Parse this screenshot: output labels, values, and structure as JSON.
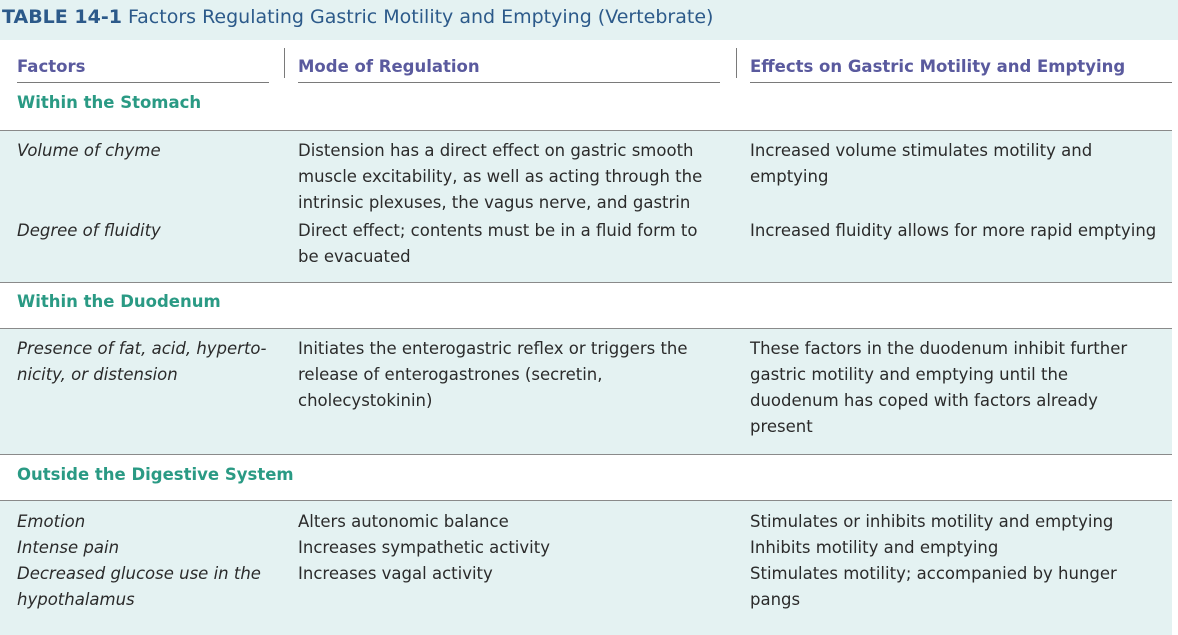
{
  "table": {
    "number": "TABLE 14-1",
    "title": "Factors Regulating Gastric Motility and Emptying (Vertebrate)",
    "columns": [
      "Factors",
      "Mode of Regulation",
      "Effects on Gastric Motility and Emptying"
    ],
    "sections": [
      {
        "label": "Within the Stomach",
        "rows": [
          {
            "factor": "Volume of chyme",
            "mode": "Distension has a direct effect on gastric smooth muscle excitability, as well as acting through the intrinsic plexuses, the vagus nerve, and gastrin",
            "effect": "Increased volume stimulates motility and emptying"
          },
          {
            "factor": "Degree of fluidity",
            "mode": "Direct effect; contents must be in a fluid form to be evacuated",
            "effect": "Increased fluidity allows for more rapid emptying"
          }
        ]
      },
      {
        "label": "Within the Duodenum",
        "rows": [
          {
            "factor": "Presence of fat, acid, hyperto- nicity, or distension",
            "mode": "Initiates the enterogastric reflex or triggers the release of enterogastrones (secretin, cholecystokinin)",
            "effect": "These factors in the duodenum inhibit further gastric motility and emptying until the duodenum has coped with factors already present"
          }
        ]
      },
      {
        "label": "Outside the Digestive System",
        "rows": [
          {
            "factor": "Emotion",
            "mode": "Alters autonomic balance",
            "effect": "Stimulates or inhibits motility and emptying"
          },
          {
            "factor": "Intense pain",
            "mode": "Increases sympathetic activity",
            "effect": "Inhibits motility and emptying"
          },
          {
            "factor": "Decreased glucose use in the hypothalamus",
            "mode": "Increases vagal activity",
            "effect": "Stimulates motility; accompanied by hunger pangs"
          }
        ]
      }
    ]
  }
}
